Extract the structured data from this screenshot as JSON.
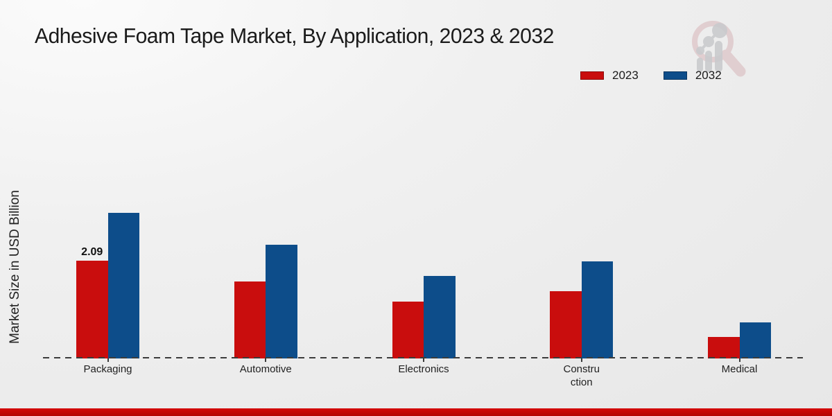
{
  "title": "Adhesive Foam Tape Market, By Application, 2023 & 2032",
  "legend": [
    {
      "label": "2023",
      "color": "#c90d0d"
    },
    {
      "label": "2032",
      "color": "#0d4d8a"
    }
  ],
  "colors": {
    "red_series": "#c90d0d",
    "blue_series": "#0d4d8a",
    "background": "#efefef",
    "footer_band": "#c40505",
    "axis_dash": "#3b3b3b"
  },
  "chart_data": {
    "type": "bar",
    "title": "Adhesive Foam Tape Market, By Application, 2023 & 2032",
    "xlabel": "",
    "ylabel": "Market Size in USD Billion",
    "categories": [
      "Packaging",
      "Automotive",
      "Electronics",
      "Construction",
      "Medical"
    ],
    "category_display": [
      "Packaging",
      "Automotive",
      "Electronics",
      "Constru\nction",
      "Medical"
    ],
    "series": [
      {
        "name": "2023",
        "color": "#c90d0d",
        "values": [
          2.09,
          1.65,
          1.22,
          1.44,
          0.46
        ]
      },
      {
        "name": "2032",
        "color": "#0d4d8a",
        "values": [
          3.11,
          2.43,
          1.76,
          2.08,
          0.77
        ]
      }
    ],
    "ylim": [
      0,
      3.5
    ],
    "grid": false,
    "legend_position": "top-right",
    "baseline_style": "dashed",
    "data_labels": [
      {
        "category": "Packaging",
        "series": "2023",
        "text": "2.09"
      }
    ]
  }
}
